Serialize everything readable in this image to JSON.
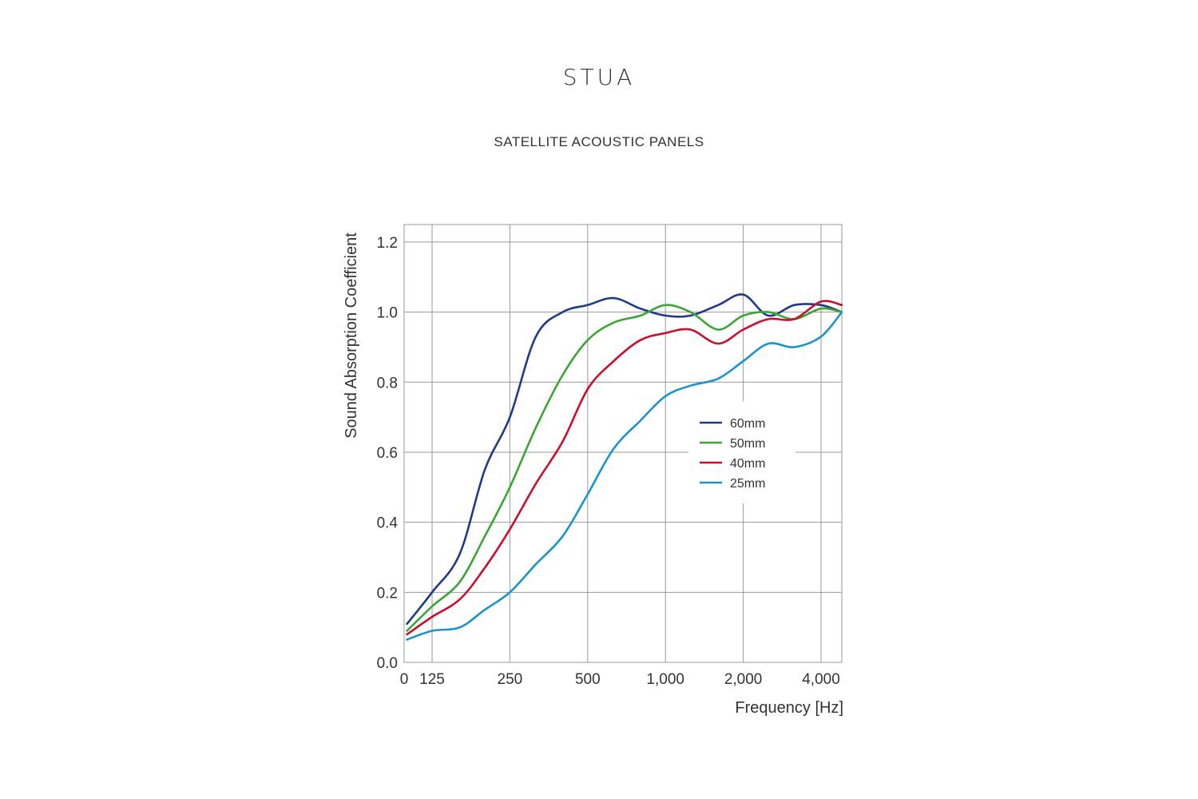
{
  "header": {
    "brand": "STUA",
    "subtitle": "SATELLITE ACOUSTIC PANELS"
  },
  "chart_data": {
    "type": "line",
    "title": "",
    "xlabel": "Frequency [Hz]",
    "ylabel": "Sound Absorption Coefficient",
    "x_scale": "log2 (octave), with a 0 origin label",
    "x_tick_labels": [
      "0",
      "125",
      "250",
      "500",
      "1,000",
      "2,000",
      "4,000"
    ],
    "x_tick_values": [
      0,
      125,
      250,
      500,
      1000,
      2000,
      4000
    ],
    "y_ticks": [
      "0.0",
      "0.2",
      "0.4",
      "0.6",
      "0.8",
      "1.0",
      "1.2"
    ],
    "ylim": [
      0,
      1.25
    ],
    "grid": true,
    "legend_position": "center-right",
    "series": [
      {
        "name": "60mm",
        "color": "#1f3a8a",
        "x": [
          100,
          125,
          160,
          200,
          250,
          315,
          400,
          500,
          630,
          800,
          1000,
          1250,
          1600,
          2000,
          2500,
          3150,
          4000,
          5000
        ],
        "y": [
          0.11,
          0.2,
          0.31,
          0.55,
          0.7,
          0.93,
          1.0,
          1.02,
          1.04,
          1.01,
          0.99,
          0.99,
          1.02,
          1.05,
          0.99,
          1.02,
          1.02,
          1.0
        ]
      },
      {
        "name": "50mm",
        "color": "#3aa635",
        "x": [
          100,
          125,
          160,
          200,
          250,
          315,
          400,
          500,
          630,
          800,
          1000,
          1250,
          1600,
          2000,
          2500,
          3150,
          4000,
          5000
        ],
        "y": [
          0.09,
          0.16,
          0.23,
          0.36,
          0.5,
          0.67,
          0.82,
          0.92,
          0.97,
          0.99,
          1.02,
          1.0,
          0.95,
          0.99,
          1.0,
          0.98,
          1.01,
          1.0
        ]
      },
      {
        "name": "40mm",
        "color": "#c8102e",
        "x": [
          100,
          125,
          160,
          200,
          250,
          315,
          400,
          500,
          630,
          800,
          1000,
          1250,
          1600,
          2000,
          2500,
          3150,
          4000,
          5000
        ],
        "y": [
          0.08,
          0.13,
          0.18,
          0.27,
          0.38,
          0.51,
          0.63,
          0.78,
          0.86,
          0.92,
          0.94,
          0.95,
          0.91,
          0.95,
          0.98,
          0.98,
          1.03,
          1.02
        ]
      },
      {
        "name": "25mm",
        "color": "#1a93d1",
        "x": [
          100,
          125,
          160,
          200,
          250,
          315,
          400,
          500,
          630,
          800,
          1000,
          1250,
          1600,
          2000,
          2500,
          3150,
          4000,
          5000
        ],
        "y": [
          0.065,
          0.09,
          0.1,
          0.15,
          0.2,
          0.28,
          0.36,
          0.48,
          0.61,
          0.69,
          0.76,
          0.79,
          0.81,
          0.86,
          0.91,
          0.9,
          0.93,
          1.0
        ]
      }
    ]
  }
}
